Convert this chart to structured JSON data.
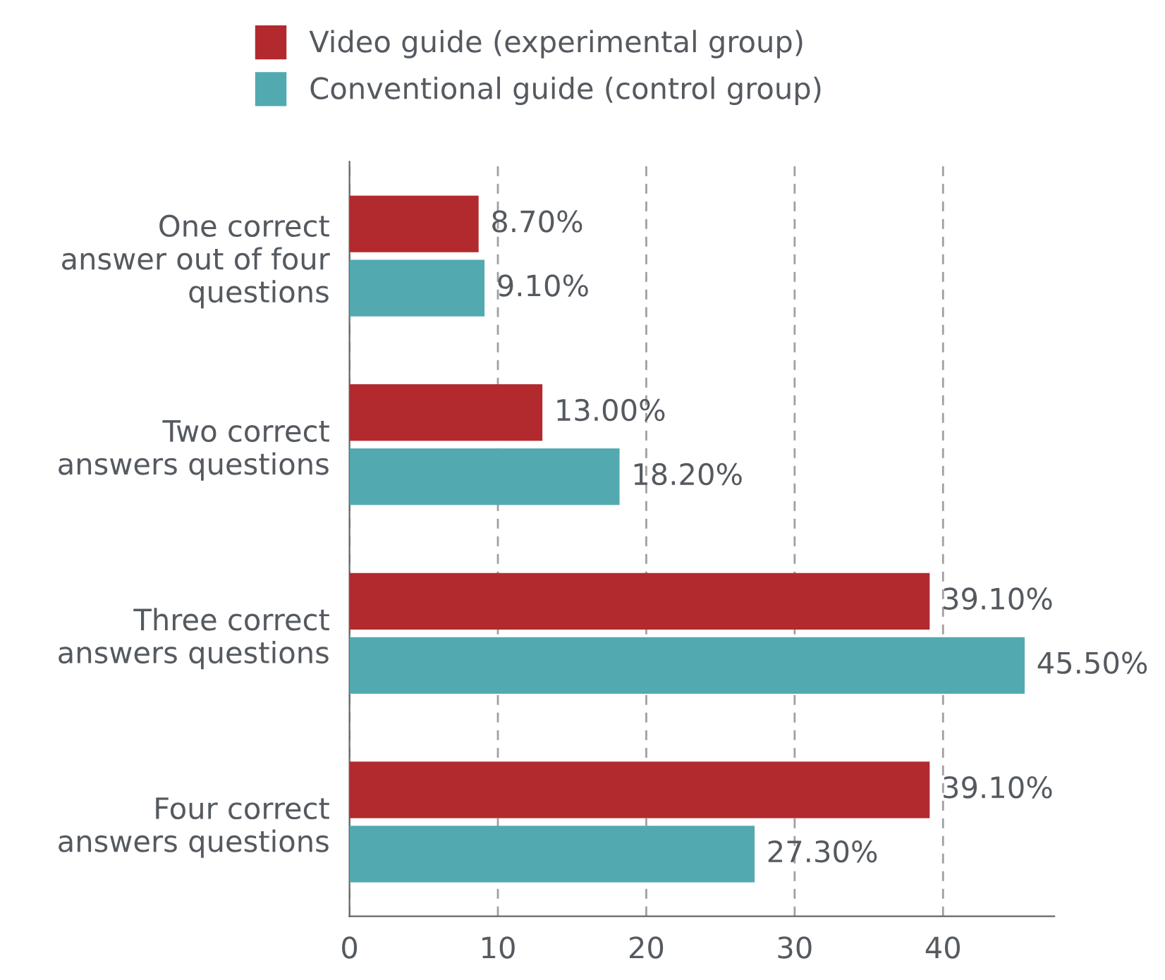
{
  "chart_data": {
    "type": "bar",
    "orientation": "horizontal",
    "categories": [
      "One correct\nanswer out of four\nquestions",
      "Two correct\nanswers questions",
      "Three correct\nanswers questions",
      "Four correct\nanswers questions"
    ],
    "series": [
      {
        "name": "Video guide (experimental group)",
        "color": "#b22a2e",
        "values": [
          8.7,
          13.0,
          39.1,
          39.1
        ],
        "value_labels": [
          "8.70%",
          "13.00%",
          "39.10%",
          "39.10%"
        ]
      },
      {
        "name": "Conventional guide (control group)",
        "color": "#52aab0",
        "values": [
          9.1,
          18.2,
          45.5,
          27.3
        ],
        "value_labels": [
          "9.10%",
          "18.20%",
          "45.50%",
          "27.30%"
        ]
      }
    ],
    "xlim": [
      0,
      47.5
    ],
    "xticks": [
      0,
      10,
      20,
      30,
      40
    ],
    "grid": "x",
    "legend": "top"
  }
}
